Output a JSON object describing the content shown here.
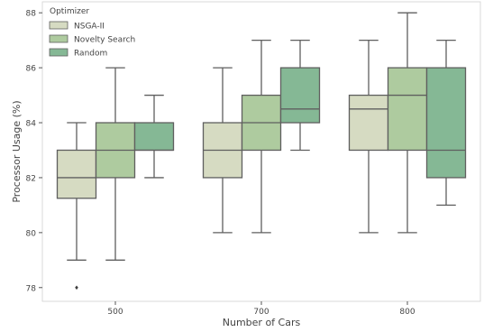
{
  "chart_data": {
    "type": "box",
    "title": "",
    "xlabel": "Number of Cars",
    "ylabel": "Processor Usage (%)",
    "categories": [
      "500",
      "700",
      "800"
    ],
    "ylim": [
      77.5,
      88.4
    ],
    "yticks": [
      78,
      80,
      82,
      84,
      86,
      88
    ],
    "grid": false,
    "legend": {
      "title": "Optimizer",
      "position": "top-left"
    },
    "series": [
      {
        "name": "NSGA-II",
        "color": "#d6dbc2",
        "boxes": [
          {
            "whisker_low": 79,
            "q1": 81.25,
            "median": 82,
            "q3": 83,
            "whisker_high": 84,
            "outliers": [
              78
            ]
          },
          {
            "whisker_low": 80,
            "q1": 82,
            "median": 83,
            "q3": 84,
            "whisker_high": 86,
            "outliers": []
          },
          {
            "whisker_low": 80,
            "q1": 83,
            "median": 84.5,
            "q3": 85,
            "whisker_high": 87,
            "outliers": []
          }
        ]
      },
      {
        "name": "Novelty Search",
        "color": "#aecb9f",
        "boxes": [
          {
            "whisker_low": 79,
            "q1": 82,
            "median": 83,
            "q3": 84,
            "whisker_high": 86,
            "outliers": []
          },
          {
            "whisker_low": 80,
            "q1": 83,
            "median": 84,
            "q3": 85,
            "whisker_high": 87,
            "outliers": []
          },
          {
            "whisker_low": 80,
            "q1": 83,
            "median": 85,
            "q3": 86,
            "whisker_high": 88,
            "outliers": []
          }
        ]
      },
      {
        "name": "Random",
        "color": "#85b895",
        "boxes": [
          {
            "whisker_low": 82,
            "q1": 83,
            "median": 83,
            "q3": 84,
            "whisker_high": 85,
            "outliers": []
          },
          {
            "whisker_low": 83,
            "q1": 84,
            "median": 84.5,
            "q3": 86,
            "whisker_high": 87,
            "outliers": []
          },
          {
            "whisker_low": 81,
            "q1": 82,
            "median": 83,
            "q3": 86,
            "whisker_high": 87,
            "outliers": []
          }
        ]
      }
    ]
  }
}
